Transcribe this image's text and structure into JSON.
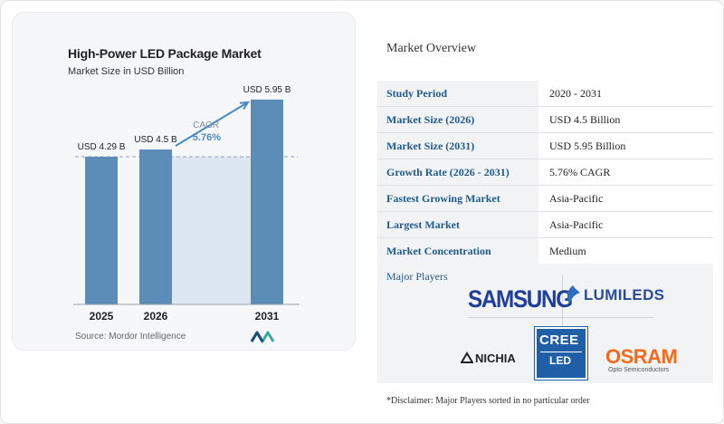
{
  "chart_data": {
    "type": "bar",
    "title": "High-Power LED Package Market",
    "subtitle": "Market Size in USD Billion",
    "categories": [
      "2025",
      "2026",
      "2031"
    ],
    "values": [
      4.29,
      4.5,
      5.95
    ],
    "data_labels": [
      "USD 4.29 B",
      "USD 4.5 B",
      "USD 5.95 B"
    ],
    "cagr_label": "CAGR",
    "cagr_value": "5.76%",
    "ylim": [
      0,
      6.5
    ],
    "bar_color": "#5b8db8",
    "shade_color": "#dce7f2",
    "arrow_color": "#4a8ac4",
    "source": "Source: Mordor Intelligence"
  },
  "overview": {
    "title": "Market Overview",
    "rows": [
      {
        "label": "Study Period",
        "value": "2020 - 2031"
      },
      {
        "label": "Market Size (2026)",
        "value": "USD 4.5 Billion"
      },
      {
        "label": "Market Size (2031)",
        "value": "USD 5.95 Billion"
      },
      {
        "label": "Growth Rate (2026 - 2031)",
        "value": "5.76% CAGR"
      },
      {
        "label": "Fastest Growing Market",
        "value": "Asia-Pacific"
      },
      {
        "label": "Largest Market",
        "value": "Asia-Pacific"
      },
      {
        "label": "Market Concentration",
        "value": "Medium"
      }
    ]
  },
  "players": {
    "title": "Major Players",
    "samsung": "SAMSUNG",
    "lumileds": "LUMILEDS",
    "nichia": "NICHIA",
    "cree": "CREE",
    "cree_sub": "LED",
    "osram": "OSRAM",
    "osram_sub": "Opto Semiconductors"
  },
  "disclaimer": "*Disclaimer: Major Players sorted in no particular order"
}
